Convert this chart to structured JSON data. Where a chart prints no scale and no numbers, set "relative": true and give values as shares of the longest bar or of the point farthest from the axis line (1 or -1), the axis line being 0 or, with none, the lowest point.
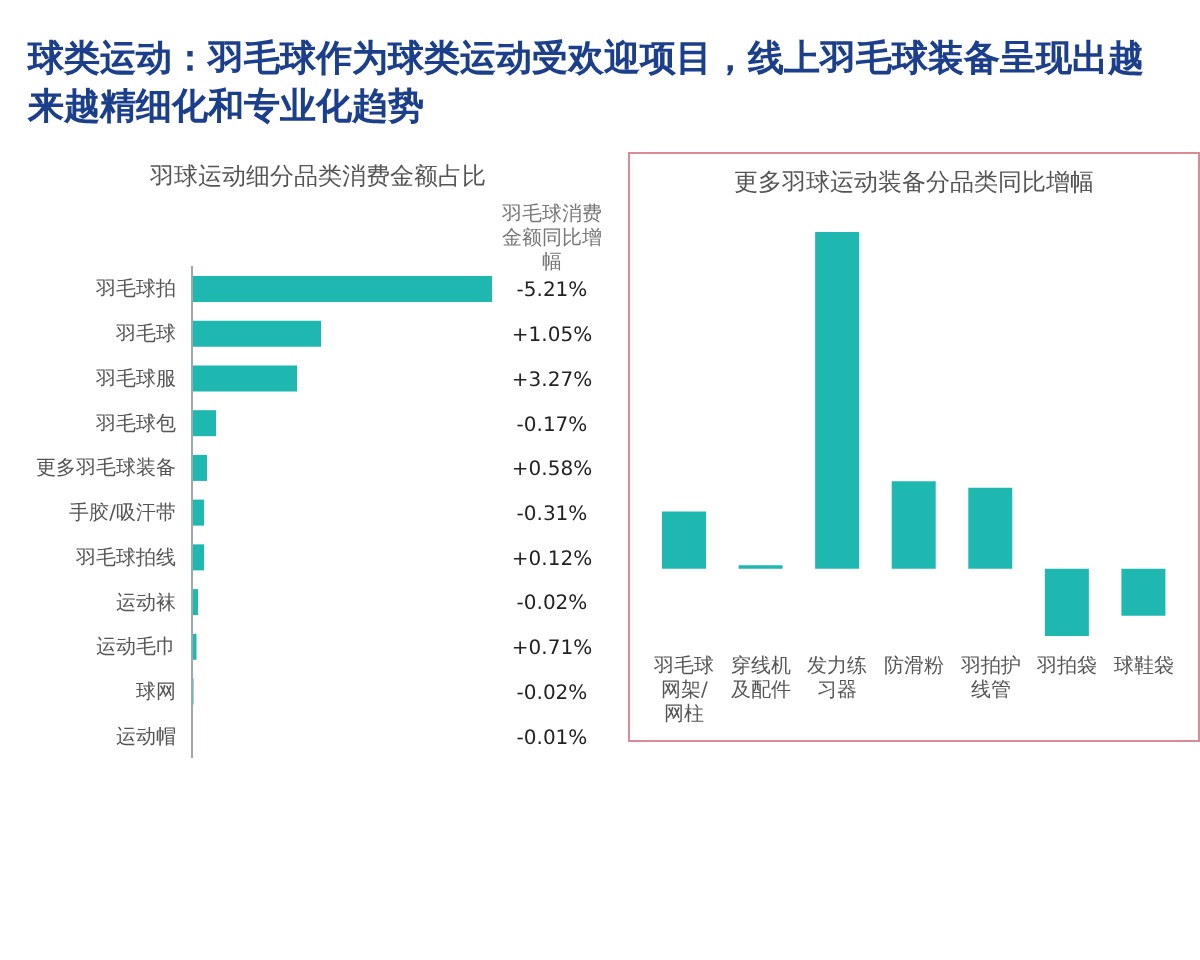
{
  "chart_data": [
    {
      "type": "bar",
      "orientation": "horizontal",
      "relative": true,
      "title": "球类运动：羽毛球作为球类运动受欢迎项目，线上羽毛球装备呈现出越来越精细化和专业化趋势",
      "subtitle": "羽球运动细分品类消费金额占比",
      "annotations": [
        "羽毛球消费金额同比增幅",
        "-5.21%",
        "+1.05%",
        "+3.27%",
        "-0.17%",
        "+0.58%",
        "-0.31%",
        "+0.12%",
        "-0.02%",
        "+0.71%",
        "-0.02%",
        "-0.01%"
      ],
      "categories": [
        "羽毛球拍",
        "羽毛球",
        "羽毛球服",
        "羽毛球包",
        "更多羽毛球装备",
        "手胶/吸汗带",
        "羽毛球拍线",
        "运动袜",
        "运动毛巾",
        "球网",
        "运动帽"
      ],
      "values": [
        1,
        0.43,
        0.35,
        0.08,
        0.05,
        0.04,
        0.04,
        0.02,
        0.015,
        0.005,
        null
      ],
      "color": "#1fb8b0"
    },
    {
      "type": "bar",
      "relative": true,
      "title": "更多羽球运动装备分品类同比增幅",
      "categories": [
        "羽毛球网架/网柱",
        "穿线机及配件",
        "发力练习器",
        "防滑粉",
        "羽拍护线管",
        "羽拍袋",
        "球鞋袋"
      ],
      "values": [
        0.17,
        0.01,
        1,
        0.26,
        0.24,
        -0.2,
        -0.14
      ],
      "color": "#1fb8b0"
    }
  ]
}
